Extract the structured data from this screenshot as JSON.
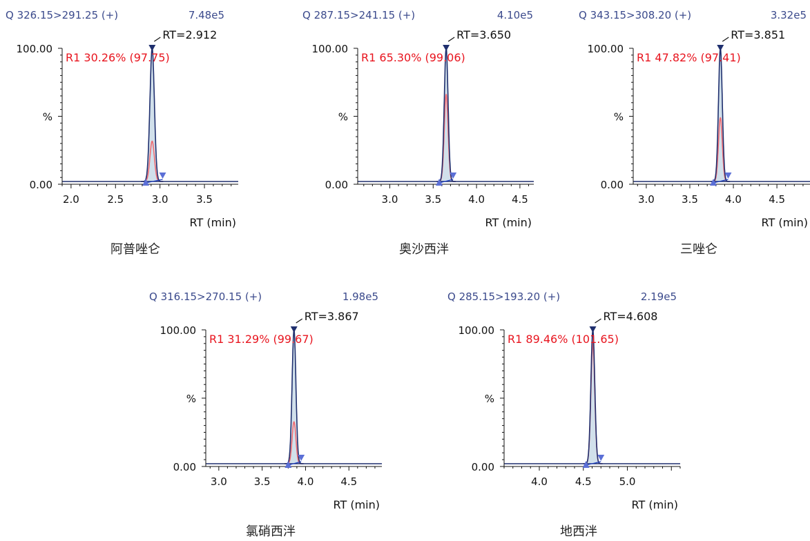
{
  "chart_data": [
    {
      "type": "line",
      "caption": "阿普唑仑",
      "transition": "Q 326.15>291.25 (+)",
      "intensity": "7.48e5",
      "rt_label": "RT=2.912",
      "r1_label": "R1 30.26% (97.75)",
      "ylabel_top": "100.00",
      "ylabel_mid": "%",
      "ylabel_bottom": "0.00",
      "xlabel": "RT (min)",
      "xlim": [
        1.9,
        3.88
      ],
      "xticks": [
        "2.0",
        "2.5",
        "3.0",
        "3.5"
      ],
      "ylim": [
        0,
        100
      ],
      "peak_rt": 2.912,
      "peak_width": 0.025,
      "primary_height": 100,
      "secondary_height": 30.26,
      "peak_start": 2.84,
      "peak_end": 3.03,
      "colors": {
        "primary": "#1f2f6e",
        "secondary": "#f06b72",
        "fill": "#c9dbe8",
        "marker": "#5b6fd6"
      }
    },
    {
      "type": "line",
      "caption": "奥沙西泮",
      "transition": "Q 287.15>241.15 (+)",
      "intensity": "4.10e5",
      "rt_label": "RT=3.650",
      "r1_label": "R1 65.30% (99.06)",
      "ylabel_top": "100.00",
      "ylabel_mid": "%",
      "ylabel_bottom": "0.00",
      "xlabel": "RT (min)",
      "xlim": [
        2.63,
        4.66
      ],
      "xticks": [
        "3.0",
        "3.5",
        "4.0",
        "4.5"
      ],
      "ylim": [
        0,
        100
      ],
      "peak_rt": 3.65,
      "peak_width": 0.022,
      "primary_height": 100,
      "secondary_height": 65.3,
      "peak_start": 3.57,
      "peak_end": 3.73,
      "colors": {
        "primary": "#1f2f6e",
        "secondary": "#f06b72",
        "fill": "#c9dbe8",
        "marker": "#5b6fd6"
      }
    },
    {
      "type": "line",
      "caption": "三唑仑",
      "transition": "Q 343.15>308.20 (+)",
      "intensity": "3.32e5",
      "rt_label": "RT=3.851",
      "r1_label": "R1 47.82% (97.41)",
      "ylabel_top": "100.00",
      "ylabel_mid": "%",
      "ylabel_bottom": "0.00",
      "xlabel": "RT (min)",
      "xlim": [
        2.85,
        4.88
      ],
      "xticks": [
        "3.0",
        "3.5",
        "4.0",
        "4.5"
      ],
      "ylim": [
        0,
        100
      ],
      "peak_rt": 3.851,
      "peak_width": 0.022,
      "primary_height": 100,
      "secondary_height": 47.82,
      "peak_start": 3.77,
      "peak_end": 3.94,
      "colors": {
        "primary": "#1f2f6e",
        "secondary": "#f06b72",
        "fill": "#c9dbe8",
        "marker": "#5b6fd6"
      }
    },
    {
      "type": "line",
      "caption": "氯硝西泮",
      "transition": "Q 316.15>270.15 (+)",
      "intensity": "1.98e5",
      "rt_label": "RT=3.867",
      "r1_label": "R1 31.29% (99.67)",
      "ylabel_top": "100.00",
      "ylabel_mid": "%",
      "ylabel_bottom": "0.00",
      "xlabel": "RT (min)",
      "xlim": [
        2.85,
        4.88
      ],
      "xticks": [
        "3.0",
        "3.5",
        "4.0",
        "4.5"
      ],
      "ylim": [
        0,
        100
      ],
      "peak_rt": 3.867,
      "peak_width": 0.022,
      "primary_height": 100,
      "secondary_height": 31.29,
      "peak_start": 3.8,
      "peak_end": 3.95,
      "colors": {
        "primary": "#1f2f6e",
        "secondary": "#f06b72",
        "fill": "#c9dbe8",
        "marker": "#5b6fd6"
      }
    },
    {
      "type": "line",
      "caption": "地西泮",
      "transition": "Q 285.15>193.20 (+)",
      "intensity": "2.19e5",
      "rt_label": "RT=4.608",
      "r1_label": "R1 89.46% (101.65)",
      "ylabel_top": "100.00",
      "ylabel_mid": "%",
      "ylabel_bottom": "0.00",
      "xlabel": "RT (min)",
      "xlim": [
        3.6,
        5.6
      ],
      "xticks": [
        "4.0",
        "4.5",
        "5.0"
      ],
      "ylim": [
        0,
        100
      ],
      "peak_rt": 4.608,
      "peak_width": 0.022,
      "primary_height": 100,
      "secondary_height": 89.46,
      "peak_start": 4.53,
      "peak_end": 4.7,
      "colors": {
        "primary": "#1f2f6e",
        "secondary": "#f06b72",
        "fill": "#c9dbe8",
        "marker": "#5b6fd6"
      }
    }
  ]
}
